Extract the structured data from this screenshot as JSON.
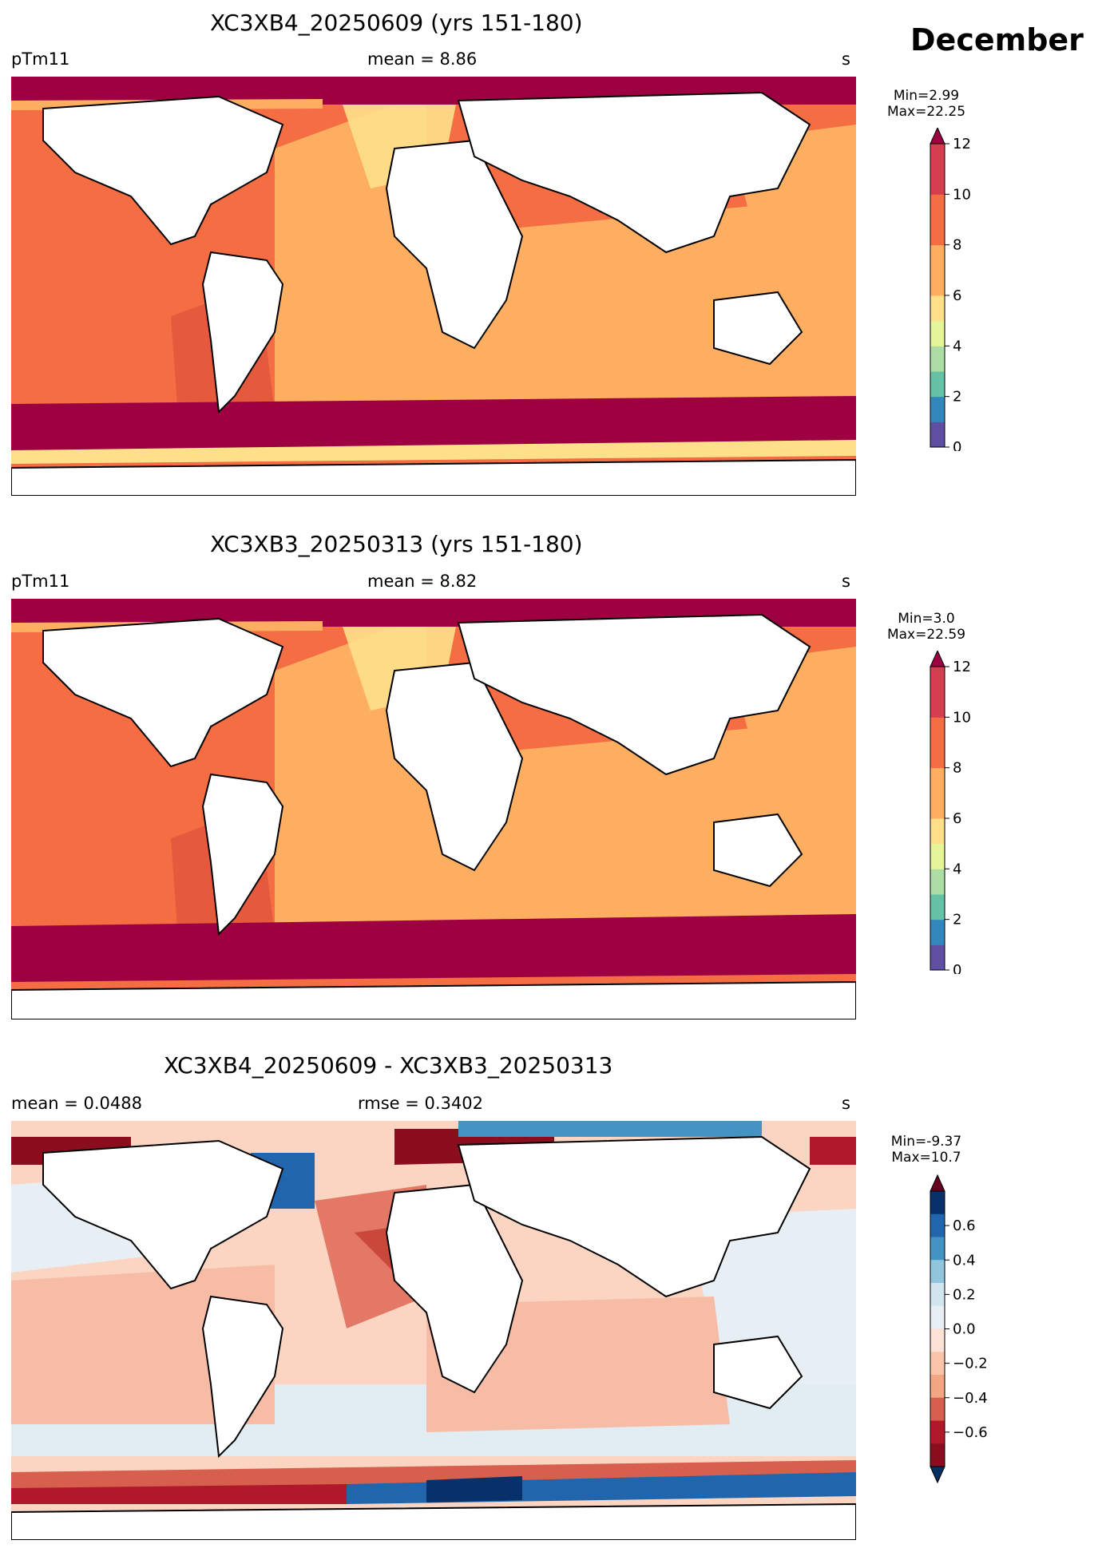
{
  "month": "December",
  "panels": [
    {
      "title": "XC3XB4_20250609 (yrs 151-180)",
      "left": "pTm11",
      "center": "mean = 8.86",
      "right": "s",
      "stats": {
        "min": "Min=2.99",
        "max": "Max=22.25"
      },
      "colorbar": {
        "ticks": [
          "0",
          "2",
          "4",
          "6",
          "8",
          "10",
          "12"
        ],
        "colors": [
          "#5e4fa2",
          "#3288bd",
          "#66c2a5",
          "#abdda4",
          "#e6f598",
          "#fee08b",
          "#fdae61",
          "#fdae61",
          "#f46d43",
          "#f46d43",
          "#d53e4f",
          "#d53e4f"
        ],
        "extend_color": "#9e0142"
      }
    },
    {
      "title": "XC3XB3_20250313 (yrs 151-180)",
      "left": "pTm11",
      "center": "mean = 8.82",
      "right": "s",
      "stats": {
        "min": "Min=3.0",
        "max": "Max=22.59"
      },
      "colorbar": {
        "ticks": [
          "0",
          "2",
          "4",
          "6",
          "8",
          "10",
          "12"
        ],
        "colors": [
          "#5e4fa2",
          "#3288bd",
          "#66c2a5",
          "#abdda4",
          "#e6f598",
          "#fee08b",
          "#fdae61",
          "#fdae61",
          "#f46d43",
          "#f46d43",
          "#d53e4f",
          "#d53e4f"
        ],
        "extend_color": "#9e0142"
      }
    },
    {
      "title": "XC3XB4_20250609 - XC3XB3_20250313",
      "left": "mean = 0.0488",
      "center": "rmse = 0.3402",
      "right": "s",
      "stats": {
        "min": "Min=-9.37",
        "max": "Max=10.7"
      },
      "colorbar": {
        "ticks": [
          "0.6",
          "0.4",
          "0.2",
          "0.0",
          "−0.2",
          "−0.4",
          "−0.6"
        ],
        "colors": [
          "#08306b",
          "#2166ac",
          "#4393c3",
          "#92c5de",
          "#d1e5f0",
          "#e7eff5",
          "#fbe2d5",
          "#fbc3a8",
          "#f4a582",
          "#d6604d",
          "#b2182b",
          "#8b0e1e"
        ],
        "extend_top": "#67001f",
        "extend_bottom": "#053061"
      }
    }
  ],
  "legend_note": ""
}
